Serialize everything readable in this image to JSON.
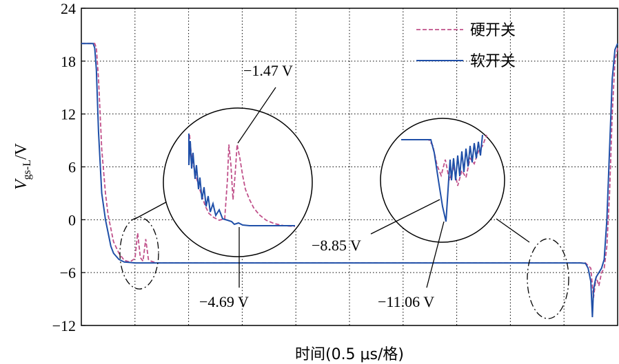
{
  "chart_data": {
    "type": "line",
    "title": "",
    "xlabel": "时间(0.5 μs/格)",
    "ylabel": {
      "var": "V",
      "sub": "gs-L",
      "unit": "/V"
    },
    "ylim": [
      -12,
      24
    ],
    "yticks": [
      "24",
      "18",
      "12",
      "6",
      "0",
      "−6",
      "−12"
    ],
    "x_divisions": 10,
    "grid": true,
    "legend_position": "top-right",
    "series": [
      {
        "name": "硬开关",
        "style": "dashed",
        "color": "#c0508a",
        "x": [
          0,
          0.25,
          0.28,
          0.32,
          0.38,
          0.45,
          0.5,
          0.55,
          0.6,
          0.7,
          0.8,
          0.9,
          1.0,
          1.05,
          1.1,
          1.15,
          1.2,
          1.25,
          1.3,
          1.35,
          1.4,
          1.6,
          2,
          4,
          6,
          8,
          9.2,
          9.4,
          9.5,
          9.55,
          9.6,
          9.65,
          9.7,
          9.75,
          9.8,
          9.85,
          9.9,
          9.95,
          10
        ],
        "y": [
          20,
          20,
          19.5,
          16,
          8,
          3,
          0.5,
          -1,
          -2.5,
          -3.8,
          -4.6,
          -4.8,
          -4.4,
          -1.5,
          -4.3,
          -4.7,
          -2.2,
          -4.5,
          -4.7,
          -4.8,
          -4.9,
          -4.9,
          -4.9,
          -4.9,
          -4.9,
          -4.9,
          -4.9,
          -4.9,
          -5.5,
          -8.85,
          -6.5,
          -7.5,
          -6,
          -5.5,
          -3,
          3,
          12,
          18,
          19.5
        ]
      },
      {
        "name": "软开关",
        "style": "solid",
        "color": "#1f4fa8",
        "x": [
          0,
          0.22,
          0.25,
          0.28,
          0.32,
          0.38,
          0.45,
          0.5,
          0.55,
          0.6,
          0.7,
          0.8,
          0.9,
          1.0,
          1.1,
          1.2,
          1.4,
          1.6,
          2,
          4,
          6,
          8,
          9.3,
          9.4,
          9.45,
          9.5,
          9.53,
          9.55,
          9.58,
          9.6,
          9.65,
          9.7,
          9.75,
          9.8,
          9.85,
          9.9,
          9.95,
          10
        ],
        "y": [
          20,
          20,
          19.5,
          17,
          10,
          3,
          0,
          -1.5,
          -3,
          -3.8,
          -4.5,
          -4.8,
          -4.85,
          -4.9,
          -4.9,
          -4.9,
          -4.9,
          -4.9,
          -4.9,
          -4.9,
          -4.9,
          -4.9,
          -4.9,
          -4.95,
          -5.5,
          -7,
          -11.06,
          -8,
          -7,
          -6.5,
          -6,
          -5.5,
          -4.5,
          0,
          8,
          16,
          19.3,
          20
        ]
      }
    ],
    "annotations": [
      {
        "text": "−1.47 V"
      },
      {
        "text": "−4.69 V"
      },
      {
        "text": "−8.85 V"
      },
      {
        "text": "−11.06 V"
      }
    ]
  }
}
